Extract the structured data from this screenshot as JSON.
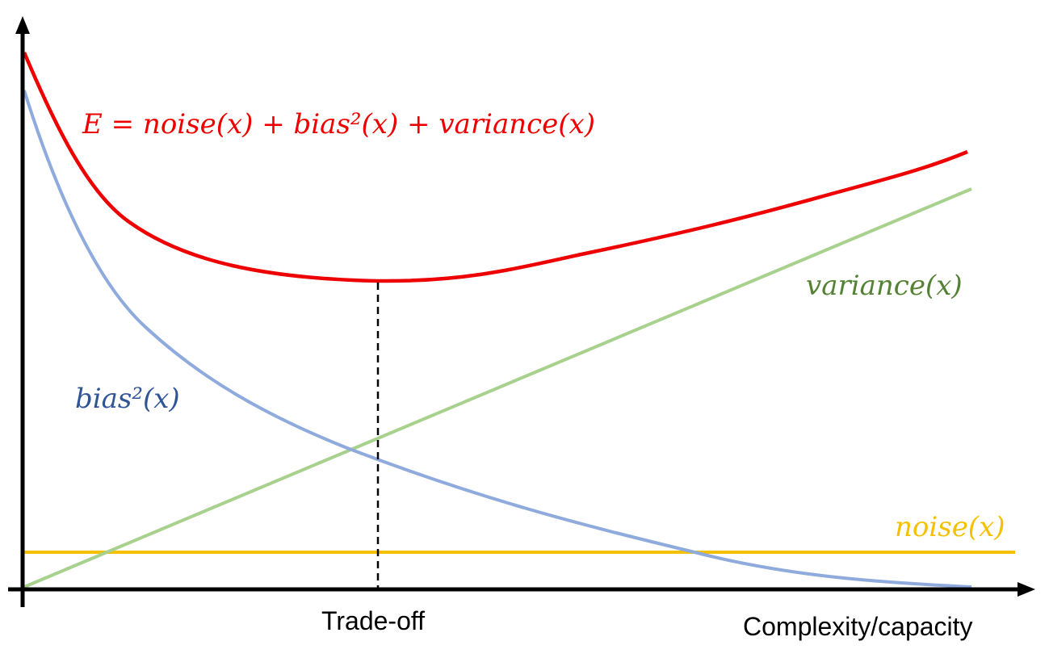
{
  "labels": {
    "total_error": "E = noise(x) + bias²(x) + variance(x)",
    "variance": "variance(x)",
    "bias": "bias²(x)",
    "noise": "noise(x)",
    "tradeoff": "Trade-off",
    "x_axis": "Complexity/capacity"
  },
  "colors": {
    "total_error": "#ee0000",
    "variance": "#a9d18e",
    "variance_label": "#548235",
    "bias": "#8faadc",
    "bias_label": "#2f5597",
    "noise": "#f5c000",
    "noise_label": "#f5c000",
    "axis": "#000000",
    "tradeoff_line": "#000000"
  },
  "curves": {
    "total_error": "decreasing-then-increasing (U-shaped)",
    "bias": "monotonically decreasing",
    "variance": "monotonically increasing (linear)",
    "noise": "constant"
  }
}
